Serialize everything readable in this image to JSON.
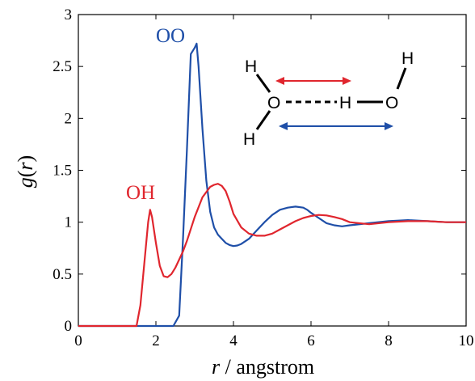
{
  "chart_data": {
    "type": "line",
    "xlabel_var": "r",
    "xlabel_unit": " / angstrom",
    "ylabel_var": "r",
    "ylabel_fn": "g(",
    "ylabel_close": ")",
    "xlim": [
      0,
      10
    ],
    "ylim": [
      0,
      3
    ],
    "x_ticks": [
      "0",
      "2",
      "4",
      "6",
      "8",
      "10"
    ],
    "y_ticks": [
      "0",
      "0.5",
      "1",
      "1.5",
      "2",
      "2.5",
      "3"
    ],
    "grid": false,
    "legend": "none",
    "series": [
      {
        "name": "OO",
        "color": "#1f4fa8",
        "x": [
          0,
          2.0,
          2.45,
          2.6,
          2.7,
          2.8,
          2.9,
          3.0,
          3.05,
          3.1,
          3.2,
          3.3,
          3.4,
          3.5,
          3.6,
          3.7,
          3.8,
          3.9,
          4.0,
          4.1,
          4.2,
          4.4,
          4.6,
          4.8,
          5.0,
          5.2,
          5.4,
          5.6,
          5.8,
          5.9,
          6.0,
          6.2,
          6.4,
          6.6,
          6.8,
          7.0,
          7.5,
          8.0,
          8.5,
          9.0,
          9.5,
          10.0
        ],
        "y": [
          0,
          0,
          0,
          0.1,
          0.85,
          1.7,
          2.62,
          2.68,
          2.72,
          2.5,
          1.9,
          1.4,
          1.1,
          0.95,
          0.88,
          0.84,
          0.8,
          0.78,
          0.77,
          0.775,
          0.79,
          0.84,
          0.92,
          1.0,
          1.07,
          1.12,
          1.14,
          1.15,
          1.14,
          1.12,
          1.09,
          1.04,
          0.99,
          0.97,
          0.96,
          0.97,
          0.99,
          1.01,
          1.02,
          1.01,
          1.0,
          1.0
        ]
      },
      {
        "name": "OH",
        "color": "#e0262e",
        "x": [
          0,
          1.5,
          1.6,
          1.7,
          1.8,
          1.85,
          1.9,
          2.0,
          2.1,
          2.2,
          2.3,
          2.4,
          2.5,
          2.6,
          2.7,
          2.8,
          3.0,
          3.2,
          3.4,
          3.5,
          3.6,
          3.7,
          3.8,
          3.9,
          4.0,
          4.2,
          4.4,
          4.6,
          4.8,
          5.0,
          5.2,
          5.4,
          5.6,
          5.8,
          6.0,
          6.2,
          6.4,
          6.6,
          6.8,
          7.0,
          7.5,
          8.0,
          8.5,
          9.0,
          9.5,
          10.0
        ],
        "y": [
          0,
          0,
          0.2,
          0.6,
          1.0,
          1.12,
          1.05,
          0.8,
          0.58,
          0.48,
          0.47,
          0.5,
          0.56,
          0.64,
          0.72,
          0.82,
          1.05,
          1.24,
          1.34,
          1.36,
          1.37,
          1.35,
          1.3,
          1.2,
          1.08,
          0.95,
          0.89,
          0.87,
          0.87,
          0.89,
          0.93,
          0.97,
          1.01,
          1.04,
          1.06,
          1.07,
          1.065,
          1.05,
          1.03,
          1.0,
          0.98,
          1.0,
          1.01,
          1.01,
          1.0,
          1.0
        ]
      }
    ]
  },
  "molecule": {
    "atoms": [
      "H",
      "O",
      "H",
      "H",
      "O",
      "H"
    ],
    "colors": {
      "red_arrow": "#e0262e",
      "blue_arrow": "#1f4fa8"
    }
  }
}
